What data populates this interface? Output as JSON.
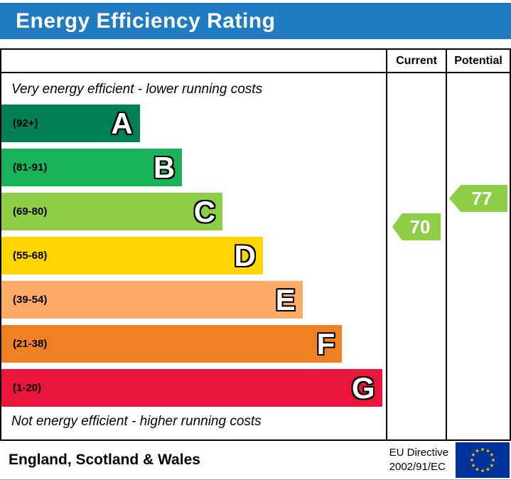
{
  "title": "Energy Efficiency Rating",
  "columns": {
    "current": "Current",
    "potential": "Potential"
  },
  "note_top": "Very energy efficient - lower running costs",
  "note_bottom": "Not energy efficient - higher running costs",
  "bands": [
    {
      "letter": "A",
      "range": "(92+)",
      "color": "#008054",
      "width_pct": 36
    },
    {
      "letter": "B",
      "range": "(81-91)",
      "color": "#19b459",
      "width_pct": 47
    },
    {
      "letter": "C",
      "range": "(69-80)",
      "color": "#8dce46",
      "width_pct": 57.5
    },
    {
      "letter": "D",
      "range": "(55-68)",
      "color": "#ffd500",
      "width_pct": 68
    },
    {
      "letter": "E",
      "range": "(39-54)",
      "color": "#fcaa65",
      "width_pct": 78.3
    },
    {
      "letter": "F",
      "range": "(21-38)",
      "color": "#ef8023",
      "width_pct": 88.6
    },
    {
      "letter": "G",
      "range": "(1-20)",
      "color": "#e9153b",
      "width_pct": 99
    }
  ],
  "current": {
    "value": 70,
    "color": "#8dce46"
  },
  "potential": {
    "value": 77,
    "color": "#8dce46"
  },
  "footer": {
    "region": "England, Scotland & Wales",
    "directive_line1": "EU Directive",
    "directive_line2": "2002/91/EC"
  },
  "colors": {
    "header_bg": "#1f7cc0",
    "flag_bg": "#003399",
    "flag_star": "#ffcc00"
  },
  "chart_data": {
    "type": "bar",
    "title": "Energy Efficiency Rating",
    "categories": [
      "A",
      "B",
      "C",
      "D",
      "E",
      "F",
      "G"
    ],
    "band_ranges": [
      "92+",
      "81-91",
      "69-80",
      "55-68",
      "39-54",
      "21-38",
      "1-20"
    ],
    "band_colors": [
      "#008054",
      "#19b459",
      "#8dce46",
      "#ffd500",
      "#fcaa65",
      "#ef8023",
      "#e9153b"
    ],
    "bar_relative_lengths": [
      36,
      47,
      57.5,
      68,
      78.3,
      88.6,
      99
    ],
    "series": [
      {
        "name": "Current",
        "value": 70,
        "band": "C"
      },
      {
        "name": "Potential",
        "value": 77,
        "band": "C"
      }
    ],
    "annotations": [
      "Very energy efficient - lower running costs",
      "Not energy efficient - higher running costs"
    ],
    "legend_position": "top-right-columns",
    "footer_region": "England, Scotland & Wales",
    "footer_directive": "EU Directive 2002/91/EC"
  }
}
